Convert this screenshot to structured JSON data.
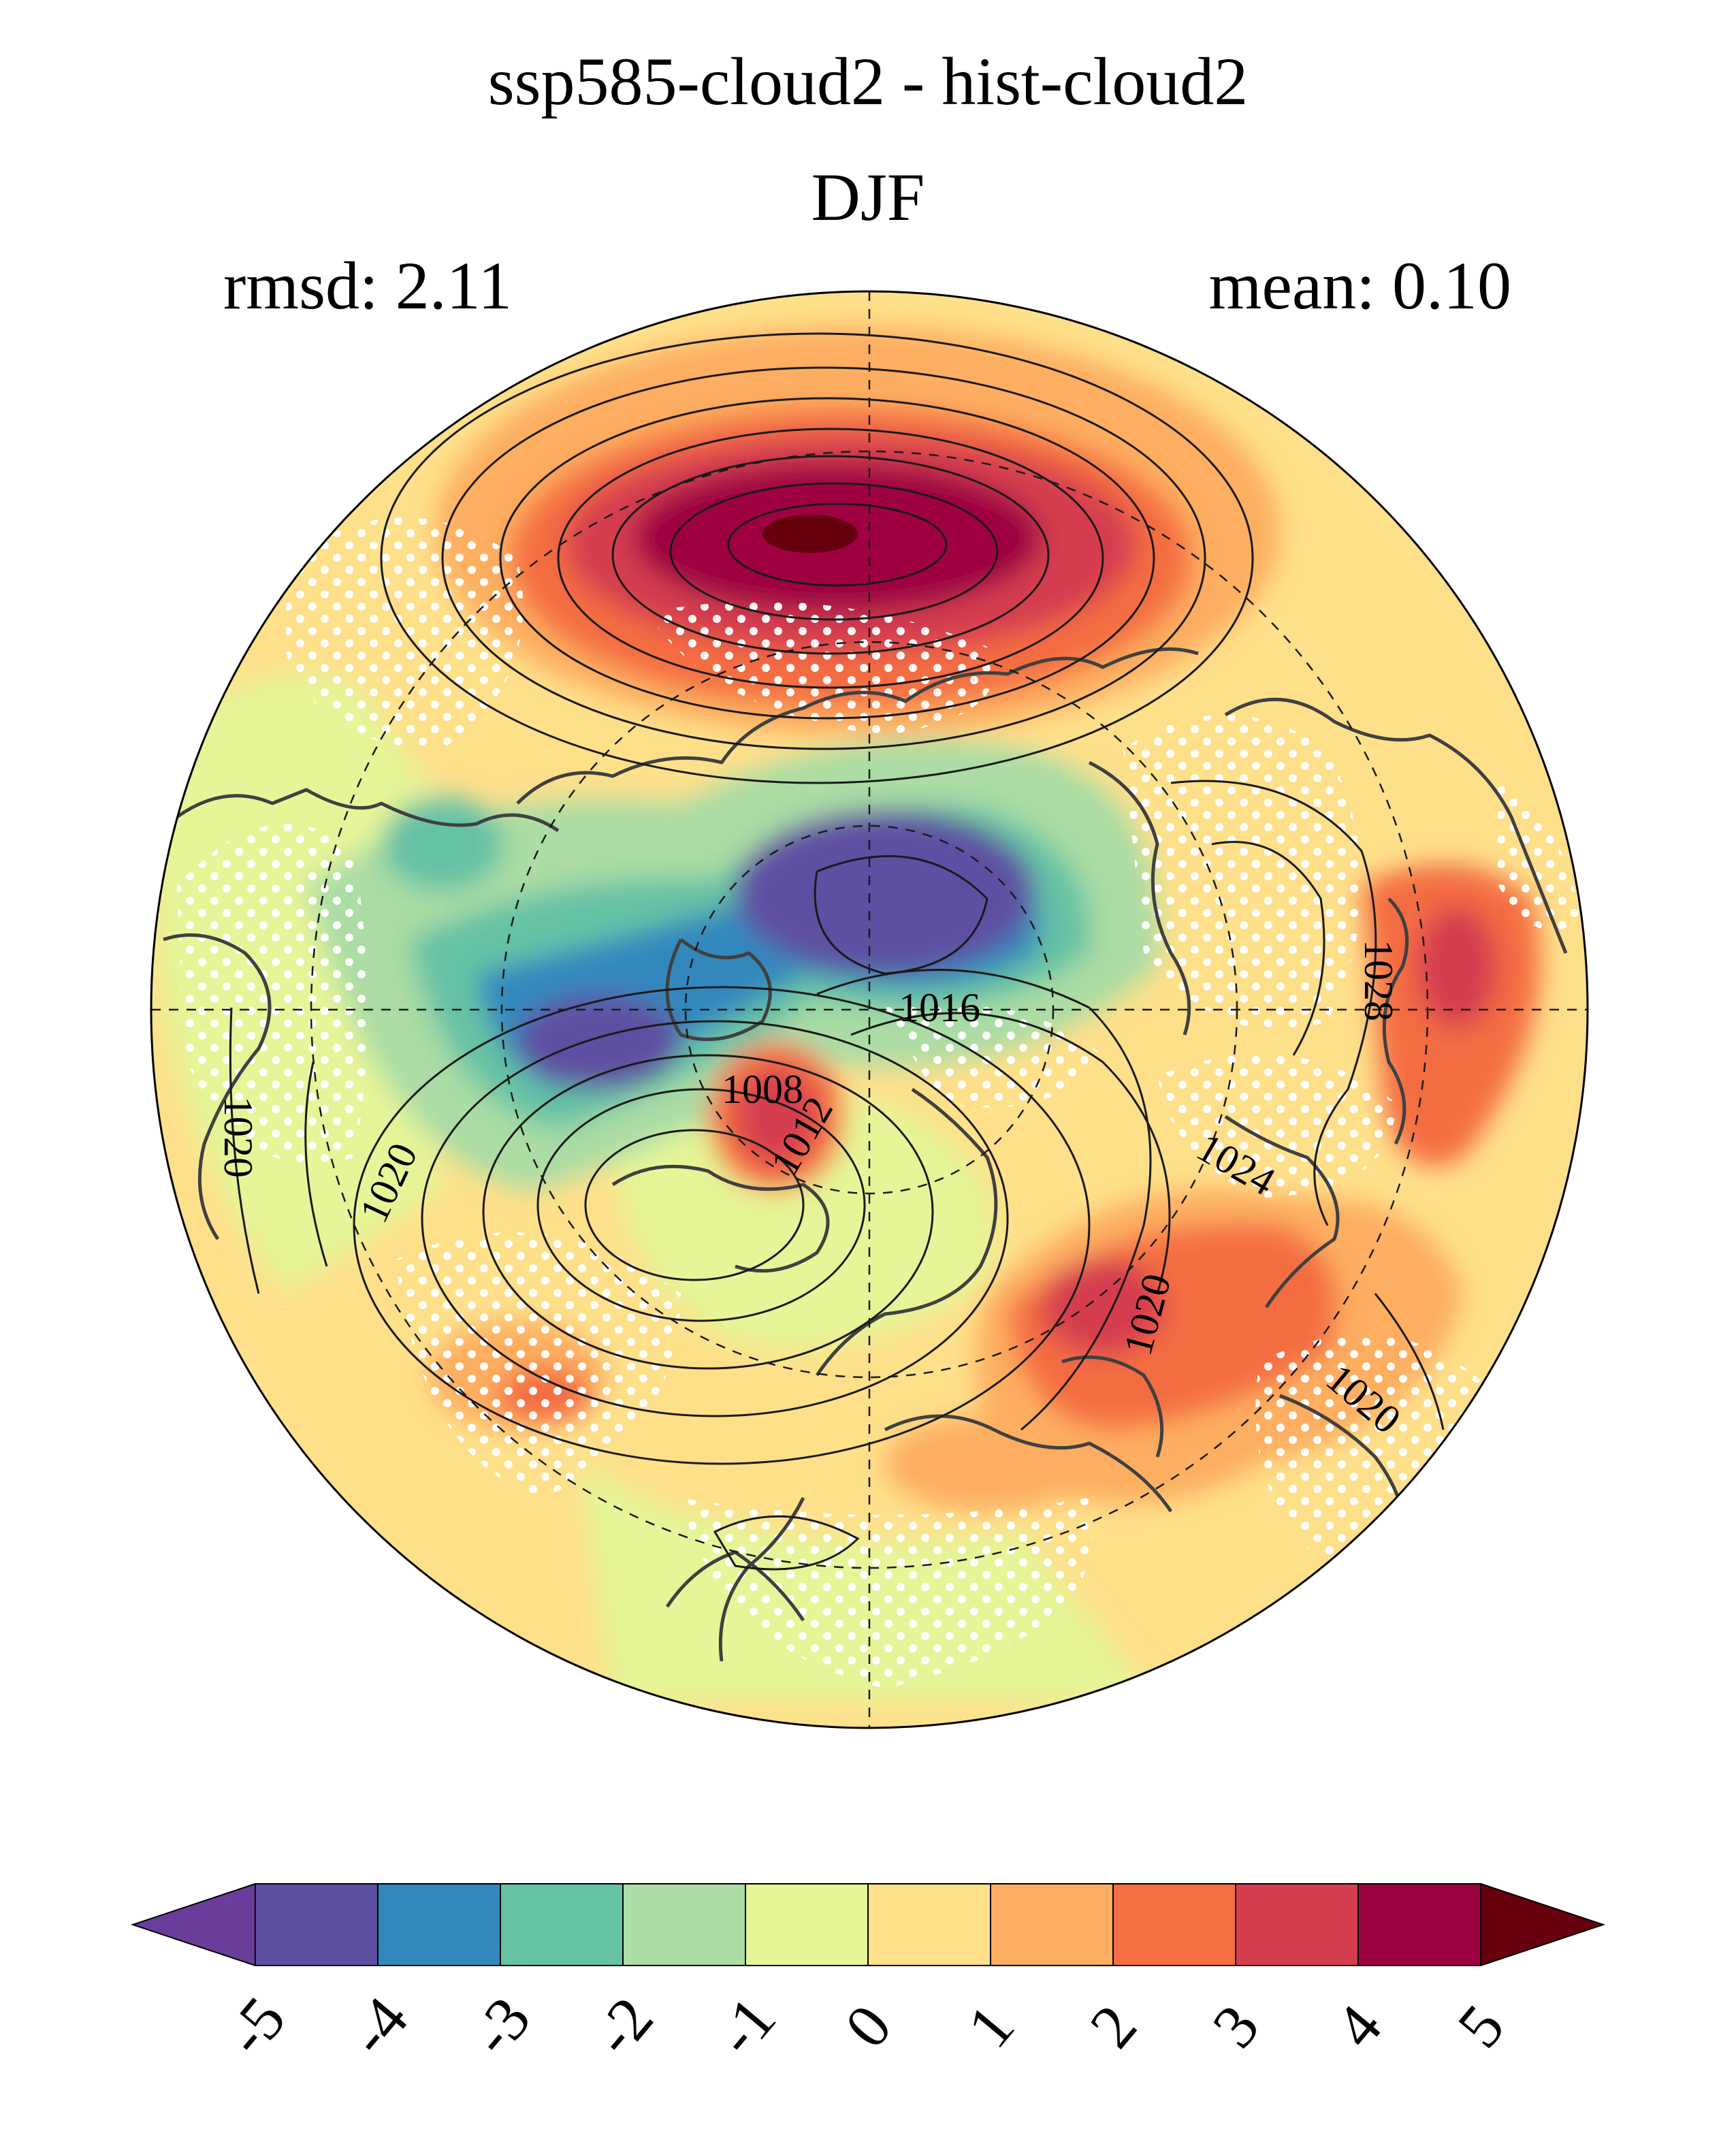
{
  "title": "ssp585-cloud2 - hist-cloud2",
  "subtitle": "DJF",
  "stats": {
    "rmsd": "rmsd: 2.11",
    "mean": "mean: 0.10"
  },
  "map": {
    "projection": "north-polar-stereographic",
    "fill": "sea level pressure difference (shaded)",
    "contours": "climatological sea level pressure (hPa)",
    "contour_labels": [
      "1008",
      "1012",
      "1016",
      "1020",
      "1020",
      "1020",
      "1024",
      "1028",
      "1020"
    ],
    "stippling": "white dots"
  },
  "colorbar": {
    "ticks": [
      "-5",
      "-4",
      "-3",
      "-2",
      "-1",
      "0",
      "1",
      "2",
      "3",
      "4",
      "5"
    ],
    "colors": [
      "#5e4fa2",
      "#3288bd",
      "#66c2a5",
      "#abdda4",
      "#e6f598",
      "#fee08b",
      "#fdae61",
      "#f46d43",
      "#d53e4f",
      "#9e0142"
    ],
    "under_color": "#6a3d9a",
    "over_color": "#67000d"
  }
}
